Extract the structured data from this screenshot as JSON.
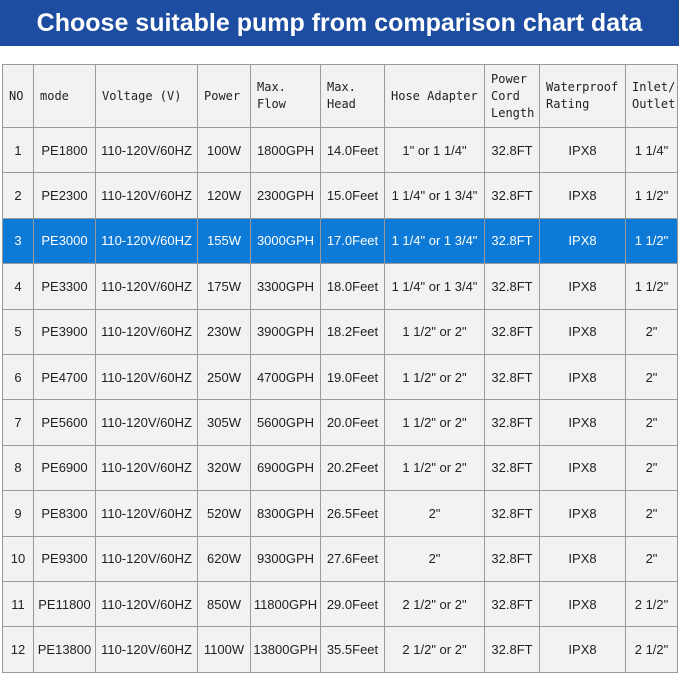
{
  "header": {
    "title": "Choose suitable pump from comparison chart data"
  },
  "table": {
    "columns": [
      "NO",
      "mode",
      "Voltage (V)",
      "Power",
      "Max. Flow",
      "Max. Head",
      "Hose Adapter",
      "Power Cord Length",
      "Waterproof Rating",
      "Inlet/ Outlet"
    ],
    "rows": [
      [
        "1",
        "PE1800",
        "110-120V/60HZ",
        "100W",
        "1800GPH",
        "14.0Feet",
        "1\" or 1 1/4\"",
        "32.8FT",
        "IPX8",
        "1 1/4\""
      ],
      [
        "2",
        "PE2300",
        "110-120V/60HZ",
        "120W",
        "2300GPH",
        "15.0Feet",
        "1 1/4\" or 1 3/4\"",
        "32.8FT",
        "IPX8",
        "1 1/2\""
      ],
      [
        "3",
        "PE3000",
        "110-120V/60HZ",
        "155W",
        "3000GPH",
        "17.0Feet",
        "1 1/4\" or 1 3/4\"",
        "32.8FT",
        "IPX8",
        "1 1/2\""
      ],
      [
        "4",
        "PE3300",
        "110-120V/60HZ",
        "175W",
        "3300GPH",
        "18.0Feet",
        "1 1/4\" or 1 3/4\"",
        "32.8FT",
        "IPX8",
        "1 1/2\""
      ],
      [
        "5",
        "PE3900",
        "110-120V/60HZ",
        "230W",
        "3900GPH",
        "18.2Feet",
        "1 1/2\" or 2\"",
        "32.8FT",
        "IPX8",
        "2\""
      ],
      [
        "6",
        "PE4700",
        "110-120V/60HZ",
        "250W",
        "4700GPH",
        "19.0Feet",
        "1 1/2\" or 2\"",
        "32.8FT",
        "IPX8",
        "2\""
      ],
      [
        "7",
        "PE5600",
        "110-120V/60HZ",
        "305W",
        "5600GPH",
        "20.0Feet",
        "1 1/2\" or 2\"",
        "32.8FT",
        "IPX8",
        "2\""
      ],
      [
        "8",
        "PE6900",
        "110-120V/60HZ",
        "320W",
        "6900GPH",
        "20.2Feet",
        "1 1/2\" or 2\"",
        "32.8FT",
        "IPX8",
        "2\""
      ],
      [
        "9",
        "PE8300",
        "110-120V/60HZ",
        "520W",
        "8300GPH",
        "26.5Feet",
        "2\"",
        "32.8FT",
        "IPX8",
        "2\""
      ],
      [
        "10",
        "PE9300",
        "110-120V/60HZ",
        "620W",
        "9300GPH",
        "27.6Feet",
        "2\"",
        "32.8FT",
        "IPX8",
        "2\""
      ],
      [
        "11",
        "PE11800",
        "110-120V/60HZ",
        "850W",
        "11800GPH",
        "29.0Feet",
        "2 1/2\" or 2\"",
        "32.8FT",
        "IPX8",
        "2 1/2\""
      ],
      [
        "12",
        "PE13800",
        "110-120V/60HZ",
        "1100W",
        "13800GPH",
        "35.5Feet",
        "2 1/2\" or 2\"",
        "32.8FT",
        "IPX8",
        "2 1/2\""
      ]
    ]
  }
}
